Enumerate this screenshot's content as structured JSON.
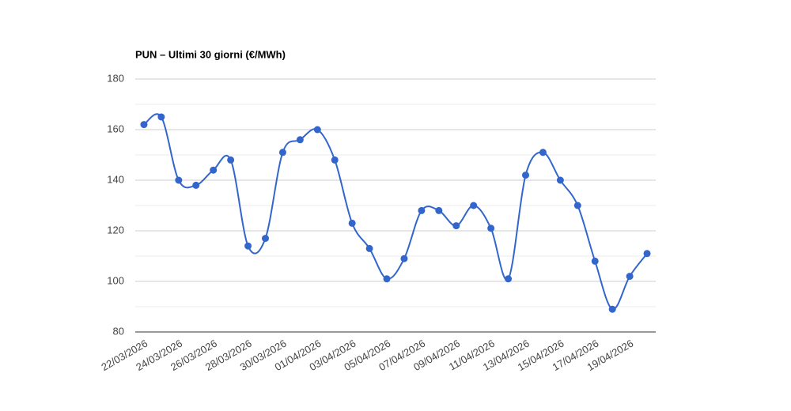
{
  "chart_data": {
    "type": "line",
    "title": "PUN – Ultimi 30 giorni (€/MWh)",
    "categories": [
      "22/03/2026",
      null,
      "24/03/2026",
      null,
      "26/03/2026",
      null,
      "28/03/2026",
      null,
      "30/03/2026",
      null,
      "01/04/2026",
      null,
      "03/04/2026",
      null,
      "05/04/2026",
      null,
      "07/04/2026",
      null,
      "09/04/2026",
      null,
      "11/04/2026",
      null,
      "13/04/2026",
      null,
      "15/04/2026",
      null,
      "17/04/2026",
      null,
      "19/04/2026",
      null
    ],
    "values": [
      162,
      165,
      140,
      138,
      144,
      148,
      114,
      117,
      151,
      156,
      160,
      148,
      123,
      113,
      101,
      109,
      128,
      128,
      122,
      130,
      121,
      101,
      142,
      151,
      140,
      130,
      108,
      89,
      102,
      111
    ],
    "color": "#3366cc",
    "ylim": [
      80,
      180
    ],
    "yticks": [
      80,
      100,
      120,
      140,
      160,
      180
    ],
    "minor_yticks": [
      90,
      110,
      130,
      150,
      170
    ],
    "grid": true
  }
}
